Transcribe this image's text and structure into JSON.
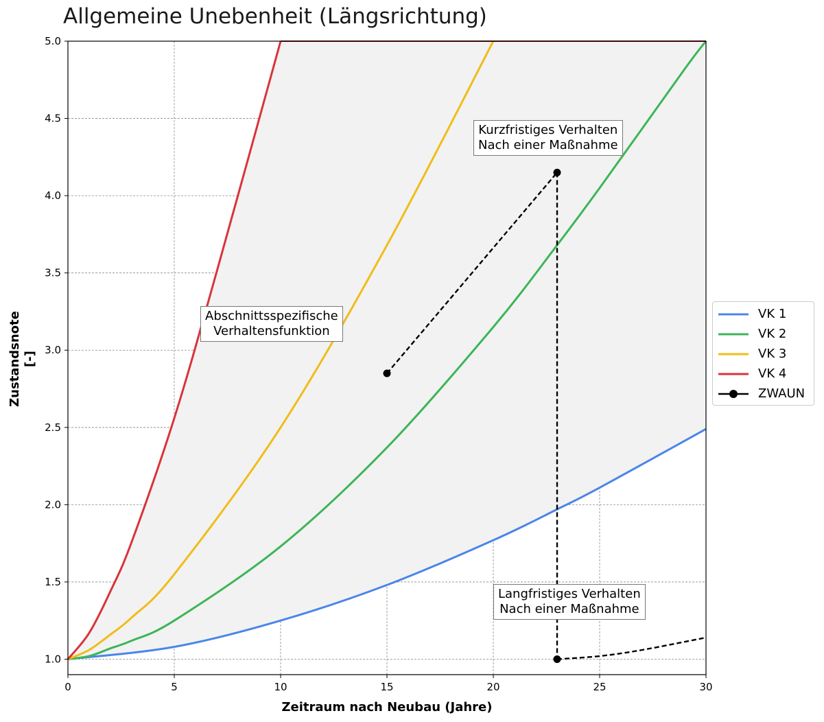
{
  "title": "Allgemeine Unebenheit (Längsrichtung)",
  "colors": {
    "VK 1": "#4a86e8",
    "VK 2": "#3cb558",
    "VK 3": "#f0bd18",
    "VK 4": "#d9333a",
    "ZWAUN": "#000000",
    "band_fill": "#f2f2f2"
  },
  "annotations": {
    "section": [
      "Abschnittsspezifische",
      "Verhaltensfunktion"
    ],
    "short_term": [
      "Kurzfristiges Verhalten",
      "Nach einer Maßnahme"
    ],
    "long_term": [
      "Langfristiges Verhalten",
      "Nach einer Maßnahme"
    ]
  },
  "chart_data": {
    "type": "line",
    "title": "Allgemeine Unebenheit (Längsrichtung)",
    "xlabel": "Zeitraum nach Neubau (Jahre)",
    "ylabel": [
      "Zustandsnote",
      "[-]"
    ],
    "xlim": [
      0,
      30
    ],
    "ylim": [
      0.9,
      5.0
    ],
    "xticks": [
      "0",
      "5",
      "10",
      "15",
      "20",
      "25",
      "30"
    ],
    "yticks": [
      "1.0",
      "1.5",
      "2.0",
      "2.5",
      "3.0",
      "3.5",
      "4.0",
      "4.5",
      "5.0"
    ],
    "grid": true,
    "legend_position": "right-center",
    "series": [
      {
        "name": "VK 1",
        "x": [
          0,
          5,
          10,
          15,
          20,
          23,
          25,
          30
        ],
        "y": [
          1.0,
          1.08,
          1.25,
          1.48,
          1.77,
          1.97,
          2.11,
          2.49
        ]
      },
      {
        "name": "VK 2",
        "x": [
          0,
          1,
          2,
          3,
          5,
          10,
          15,
          20,
          23,
          25,
          29,
          30
        ],
        "y": [
          1.0,
          1.02,
          1.07,
          1.12,
          1.25,
          1.73,
          2.37,
          3.15,
          3.68,
          4.05,
          4.82,
          5.0
        ]
      },
      {
        "name": "VK 3",
        "x": [
          0,
          1,
          2,
          3,
          5,
          10,
          15,
          20
        ],
        "y": [
          1.0,
          1.06,
          1.16,
          1.27,
          1.55,
          2.5,
          3.68,
          5.0
        ]
      },
      {
        "name": "VK 4",
        "x": [
          0,
          1,
          2,
          3,
          5,
          7,
          10
        ],
        "y": [
          1.0,
          1.17,
          1.44,
          1.76,
          2.56,
          3.51,
          5.0
        ]
      },
      {
        "name": "ZWAUN",
        "segments": [
          {
            "x": [
              15,
              23
            ],
            "y": [
              2.85,
              4.15
            ],
            "markers": true
          },
          {
            "x": [
              23,
              23
            ],
            "y": [
              4.15,
              1.0
            ],
            "markers": false
          },
          {
            "x": [
              23,
              25,
              27,
              30
            ],
            "y": [
              1.0,
              1.02,
              1.06,
              1.14
            ],
            "markers": true
          }
        ]
      }
    ]
  }
}
